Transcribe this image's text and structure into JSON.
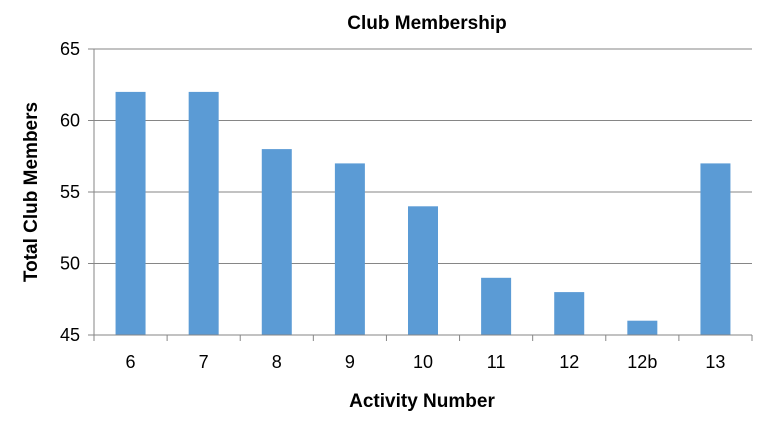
{
  "chart_data": {
    "type": "bar",
    "title": "Club Membership",
    "xlabel": "Activity Number",
    "ylabel": "Total Club Members",
    "categories": [
      "6",
      "7",
      "8",
      "9",
      "10",
      "11",
      "12",
      "12b",
      "13"
    ],
    "values": [
      62,
      62,
      58,
      57,
      54,
      49,
      48,
      46,
      57
    ],
    "ylim": [
      45,
      65
    ],
    "yticks": [
      "45",
      "50",
      "55",
      "60",
      "65"
    ],
    "grid": true,
    "legend": "none",
    "bar_color": "#5B9BD5",
    "grid_color": "#868686"
  }
}
